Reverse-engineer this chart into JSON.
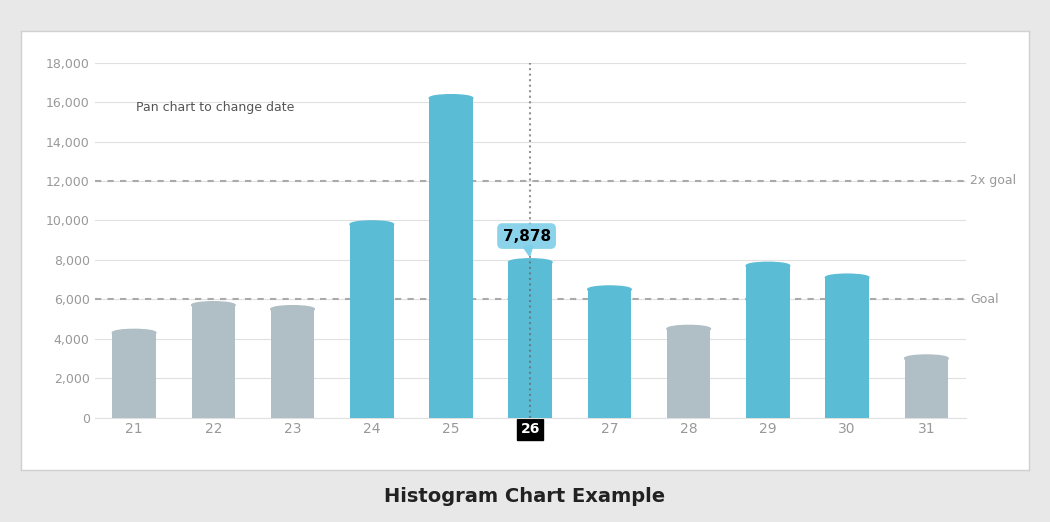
{
  "categories": [
    21,
    22,
    23,
    24,
    25,
    26,
    27,
    28,
    29,
    30,
    31
  ],
  "values": [
    4300,
    5700,
    5500,
    9800,
    16200,
    7878,
    6500,
    4500,
    7700,
    7100,
    3000
  ],
  "bar_colors": [
    "#b0bec5",
    "#b0bec5",
    "#b0bec5",
    "#5bbcd6",
    "#5bbcd6",
    "#5bbcd6",
    "#5bbcd6",
    "#b0bec5",
    "#5bbcd6",
    "#5bbcd6",
    "#b0bec5"
  ],
  "highlighted_bar_index": 5,
  "highlighted_value": 7878,
  "highlighted_label": "7,878",
  "goal_value": 6000,
  "goal_label": "Goal",
  "goal2x_value": 12000,
  "goal2x_label": "2x goal",
  "annotation_text": "Pan chart to change date",
  "title": "Histogram Chart Example",
  "ylim": [
    0,
    18000
  ],
  "yticks": [
    0,
    2000,
    4000,
    6000,
    8000,
    10000,
    12000,
    14000,
    16000,
    18000
  ],
  "ytick_labels": [
    "0",
    "2,000",
    "4,000",
    "6,000",
    "8,000",
    "10,000",
    "12,000",
    "14,000",
    "16,000",
    "18,000"
  ],
  "bg_color": "#ffffff",
  "outer_bg": "#e8e8e8",
  "border_color": "#d0d0d0",
  "grid_color": "#e0e0e0",
  "dashed_line_color": "#aaaaaa",
  "tooltip_bg": "#7ecfe8",
  "tooltip_text_color": "#000000",
  "title_fontsize": 14,
  "bar_width": 0.55,
  "vline_color": "#666666",
  "axis_text_color": "#999999",
  "goal_text_color": "#999999",
  "annotation_color": "#555555"
}
